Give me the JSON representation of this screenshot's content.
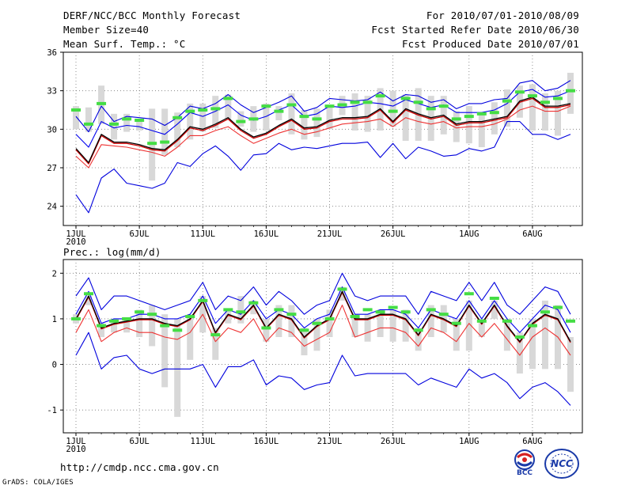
{
  "header": {
    "title": "DERF/NCC/BCC Monthly Forecast",
    "member_size": "Member Size=40",
    "variable": "Mean Surf. Temp.: °C",
    "period": "For 2010/07/01-2010/08/09",
    "started": "Fcst Started Refer Date 2010/06/30",
    "produced": "Fcst Produced Date 2010/07/01"
  },
  "precip_label": "Prec.: log(mm/d)",
  "footer": {
    "url": "http://cmdp.ncc.cma.gov.cn",
    "credit": "GrADS: COLA/IGES",
    "logo_bcc": "BCC",
    "logo_ncc": "NCC"
  },
  "colors": {
    "max_line": "#0000dd",
    "upper_line": "#0000ee",
    "mean_line": "#000000",
    "median_line": "#cc0000",
    "lower_line": "#ee3333",
    "min_line": "#0000dd",
    "range_bar": "#d8d8d8",
    "obs_mark": "#44dd44",
    "grid": "#777777"
  },
  "chart_data": [
    {
      "type": "line",
      "name": "temperature",
      "ylabel": "Mean Surf. Temp.: °C",
      "ylim": [
        22.5,
        36
      ],
      "yticks": [
        24,
        27,
        30,
        33,
        36
      ],
      "xticks": [
        {
          "day": 1,
          "label": "1JUL",
          "sub": "2010"
        },
        {
          "day": 6,
          "label": "6JUL"
        },
        {
          "day": 11,
          "label": "11JUL"
        },
        {
          "day": 16,
          "label": "16JUL"
        },
        {
          "day": 21,
          "label": "21JUL"
        },
        {
          "day": 26,
          "label": "26JUL"
        },
        {
          "day": 32,
          "label": "1AUG"
        },
        {
          "day": 37,
          "label": "6AUG"
        }
      ],
      "x": [
        1,
        2,
        3,
        4,
        5,
        6,
        7,
        8,
        9,
        10,
        11,
        12,
        13,
        14,
        15,
        16,
        17,
        18,
        19,
        20,
        21,
        22,
        23,
        24,
        25,
        26,
        27,
        28,
        29,
        30,
        31,
        32,
        33,
        34,
        35,
        36,
        37,
        38,
        39,
        40
      ],
      "series": [
        {
          "name": "max",
          "values": [
            31.0,
            29.8,
            31.8,
            30.6,
            31.0,
            30.9,
            30.8,
            30.3,
            30.9,
            31.8,
            31.6,
            32.0,
            32.7,
            31.9,
            31.3,
            31.7,
            32.1,
            32.6,
            31.4,
            31.7,
            32.4,
            32.3,
            32.2,
            32.3,
            32.9,
            32.2,
            32.7,
            32.6,
            32.1,
            32.3,
            31.6,
            32.0,
            32.0,
            32.3,
            32.4,
            33.6,
            33.8,
            33.0,
            33.2,
            33.8
          ]
        },
        {
          "name": "upper",
          "values": [
            29.6,
            28.6,
            30.6,
            30.1,
            30.3,
            30.2,
            29.9,
            29.6,
            30.4,
            31.3,
            31.0,
            31.4,
            31.9,
            31.1,
            30.7,
            31.0,
            31.5,
            31.9,
            31.0,
            31.2,
            31.8,
            31.7,
            31.8,
            32.1,
            32.0,
            31.8,
            32.3,
            32.0,
            31.7,
            31.9,
            31.3,
            31.3,
            31.3,
            31.5,
            32.0,
            32.9,
            33.1,
            32.5,
            32.6,
            33.0
          ]
        },
        {
          "name": "mean",
          "values": [
            28.5,
            27.4,
            29.6,
            29.0,
            29.0,
            28.8,
            28.5,
            28.4,
            29.2,
            30.2,
            30.0,
            30.4,
            30.9,
            30.0,
            29.4,
            29.7,
            30.3,
            30.8,
            30.1,
            30.2,
            30.7,
            30.9,
            30.9,
            31.0,
            31.6,
            30.6,
            31.6,
            31.2,
            30.9,
            31.1,
            30.4,
            30.6,
            30.6,
            30.8,
            31.0,
            32.2,
            32.5,
            31.8,
            31.8,
            32.0
          ]
        },
        {
          "name": "median",
          "values": [
            28.4,
            27.3,
            29.5,
            28.9,
            28.9,
            28.7,
            28.4,
            28.3,
            29.1,
            30.1,
            29.9,
            30.3,
            30.8,
            29.9,
            29.3,
            29.6,
            30.2,
            30.7,
            30.0,
            30.1,
            30.6,
            30.8,
            30.8,
            30.9,
            31.5,
            30.5,
            31.5,
            31.1,
            30.8,
            31.0,
            30.3,
            30.5,
            30.5,
            30.7,
            30.9,
            32.1,
            32.4,
            31.7,
            31.7,
            31.9
          ]
        },
        {
          "name": "lower",
          "values": [
            27.9,
            27.0,
            28.8,
            28.7,
            28.6,
            28.4,
            28.2,
            27.9,
            28.6,
            29.5,
            29.5,
            29.9,
            30.2,
            29.5,
            28.9,
            29.3,
            29.7,
            30.0,
            29.6,
            29.8,
            30.1,
            30.4,
            30.5,
            30.6,
            30.8,
            30.2,
            30.9,
            30.6,
            30.4,
            30.6,
            30.1,
            30.2,
            30.2,
            30.4,
            30.8,
            31.5,
            31.8,
            31.4,
            31.4,
            31.8
          ]
        },
        {
          "name": "min",
          "values": [
            24.9,
            23.5,
            26.2,
            26.9,
            25.8,
            25.6,
            25.4,
            25.8,
            27.4,
            27.1,
            28.1,
            28.7,
            27.9,
            26.8,
            28.0,
            28.1,
            28.9,
            28.4,
            28.6,
            28.5,
            28.7,
            28.9,
            28.9,
            29.0,
            27.8,
            28.9,
            27.7,
            28.6,
            28.3,
            27.9,
            28.0,
            28.5,
            28.3,
            28.6,
            30.6,
            30.6,
            29.6,
            29.6,
            29.2,
            29.6
          ]
        },
        {
          "name": "bar_top",
          "values": [
            31.8,
            31.7,
            33.4,
            31.2,
            31.2,
            30.8,
            31.6,
            31.6,
            31.3,
            32.0,
            32.0,
            32.6,
            32.7,
            31.4,
            31.8,
            32.0,
            31.8,
            32.8,
            31.5,
            31.6,
            31.9,
            32.6,
            32.8,
            32.6,
            33.2,
            33.0,
            32.7,
            33.2,
            32.6,
            32.6,
            31.4,
            31.8,
            31.3,
            32.1,
            33.1,
            33.4,
            33.5,
            32.8,
            33.0,
            34.4
          ]
        },
        {
          "name": "bar_bottom",
          "values": [
            30.0,
            29.8,
            30.4,
            29.2,
            29.8,
            29.9,
            26.0,
            28.0,
            28.6,
            29.2,
            29.8,
            30.1,
            30.8,
            30.2,
            29.8,
            29.9,
            30.7,
            29.6,
            29.2,
            29.4,
            30.0,
            31.1,
            29.9,
            29.8,
            29.9,
            30.2,
            29.1,
            29.1,
            29.1,
            29.6,
            29.0,
            28.9,
            28.6,
            29.6,
            30.2,
            30.9,
            29.9,
            29.9,
            29.5,
            31.2
          ]
        },
        {
          "name": "observed",
          "values": [
            31.5,
            30.4,
            32.0,
            30.4,
            30.8,
            30.7,
            28.9,
            29.0,
            30.9,
            31.4,
            31.5,
            31.6,
            32.4,
            30.6,
            30.8,
            31.8,
            31.4,
            31.9,
            31.0,
            30.8,
            31.8,
            31.9,
            32.1,
            32.1,
            32.6,
            31.4,
            32.4,
            32.1,
            31.6,
            31.8,
            30.8,
            31.0,
            31.2,
            31.3,
            32.2,
            32.9,
            32.6,
            32.1,
            32.4,
            33.0
          ]
        }
      ]
    },
    {
      "type": "line",
      "name": "precipitation",
      "ylabel": "Prec.: log(mm/d)",
      "ylim": [
        -1.5,
        2.3
      ],
      "yticks": [
        -1,
        0,
        1,
        2
      ],
      "xticks": [
        {
          "day": 1,
          "label": "1JUL",
          "sub": "2010"
        },
        {
          "day": 6,
          "label": "6JUL"
        },
        {
          "day": 11,
          "label": "11JUL"
        },
        {
          "day": 16,
          "label": "16JUL"
        },
        {
          "day": 21,
          "label": "21JUL"
        },
        {
          "day": 26,
          "label": "26JUL"
        },
        {
          "day": 32,
          "label": "1AUG"
        },
        {
          "day": 37,
          "label": "6AUG"
        }
      ],
      "x": [
        1,
        2,
        3,
        4,
        5,
        6,
        7,
        8,
        9,
        10,
        11,
        12,
        13,
        14,
        15,
        16,
        17,
        18,
        19,
        20,
        21,
        22,
        23,
        24,
        25,
        26,
        27,
        28,
        29,
        30,
        31,
        32,
        33,
        34,
        35,
        36,
        37,
        38,
        39,
        40
      ],
      "series": [
        {
          "name": "max",
          "values": [
            1.5,
            1.9,
            1.2,
            1.5,
            1.5,
            1.4,
            1.3,
            1.2,
            1.3,
            1.4,
            1.8,
            1.2,
            1.5,
            1.4,
            1.7,
            1.3,
            1.6,
            1.4,
            1.1,
            1.3,
            1.4,
            2.0,
            1.5,
            1.4,
            1.5,
            1.5,
            1.5,
            1.1,
            1.6,
            1.5,
            1.4,
            1.8,
            1.4,
            1.8,
            1.3,
            1.1,
            1.4,
            1.7,
            1.6,
            1.1
          ]
        },
        {
          "name": "upper",
          "values": [
            1.1,
            1.6,
            0.9,
            1.0,
            1.0,
            1.1,
            1.1,
            1.0,
            1.0,
            1.1,
            1.5,
            0.9,
            1.2,
            1.1,
            1.4,
            1.0,
            1.2,
            1.1,
            0.8,
            1.0,
            1.1,
            1.7,
            1.1,
            1.1,
            1.2,
            1.2,
            1.1,
            0.8,
            1.2,
            1.1,
            1.0,
            1.4,
            1.0,
            1.4,
            1.0,
            0.7,
            1.0,
            1.3,
            1.2,
            0.7
          ]
        },
        {
          "name": "mean",
          "values": [
            1.0,
            1.5,
            0.8,
            0.9,
            0.95,
            1.0,
            1.0,
            0.9,
            0.85,
            1.0,
            1.4,
            0.7,
            1.1,
            1.0,
            1.3,
            0.8,
            1.1,
            1.0,
            0.6,
            0.85,
            1.0,
            1.6,
            1.0,
            1.0,
            1.1,
            1.1,
            1.0,
            0.65,
            1.1,
            1.0,
            0.85,
            1.3,
            0.9,
            1.3,
            0.85,
            0.5,
            0.9,
            1.1,
            1.0,
            0.5
          ]
        },
        {
          "name": "median",
          "values": [
            0.98,
            1.48,
            0.78,
            0.88,
            0.93,
            0.98,
            0.98,
            0.88,
            0.83,
            0.98,
            1.38,
            0.68,
            1.08,
            0.98,
            1.28,
            0.78,
            1.08,
            0.98,
            0.58,
            0.83,
            0.98,
            1.58,
            0.98,
            0.98,
            1.08,
            1.08,
            0.98,
            0.63,
            1.08,
            0.98,
            0.83,
            1.28,
            0.88,
            1.28,
            0.83,
            0.48,
            0.88,
            1.08,
            0.98,
            0.48
          ]
        },
        {
          "name": "lower",
          "values": [
            0.7,
            1.2,
            0.5,
            0.7,
            0.8,
            0.7,
            0.7,
            0.6,
            0.55,
            0.7,
            1.1,
            0.5,
            0.8,
            0.7,
            1.0,
            0.5,
            0.8,
            0.7,
            0.4,
            0.55,
            0.7,
            1.3,
            0.6,
            0.7,
            0.8,
            0.8,
            0.7,
            0.4,
            0.8,
            0.7,
            0.5,
            0.9,
            0.6,
            0.9,
            0.55,
            0.2,
            0.6,
            0.8,
            0.6,
            0.2
          ]
        },
        {
          "name": "min",
          "values": [
            0.2,
            0.7,
            -0.1,
            0.15,
            0.2,
            -0.1,
            -0.2,
            -0.1,
            -0.1,
            -0.1,
            0.0,
            -0.5,
            -0.05,
            -0.05,
            0.1,
            -0.45,
            -0.25,
            -0.3,
            -0.55,
            -0.45,
            -0.4,
            0.2,
            -0.25,
            -0.2,
            -0.2,
            -0.2,
            -0.2,
            -0.45,
            -0.3,
            -0.4,
            -0.5,
            -0.1,
            -0.3,
            -0.2,
            -0.4,
            -0.75,
            -0.5,
            -0.4,
            -0.6,
            -0.9
          ]
        },
        {
          "name": "bar_top",
          "values": [
            1.1,
            1.5,
            0.9,
            1.0,
            1.0,
            1.2,
            1.3,
            1.1,
            1.0,
            1.1,
            1.5,
            0.8,
            1.2,
            1.5,
            1.4,
            1.0,
            1.3,
            1.3,
            0.8,
            1.0,
            1.2,
            1.7,
            1.1,
            1.1,
            1.2,
            1.2,
            1.2,
            0.8,
            1.3,
            1.3,
            1.0,
            1.4,
            1.0,
            1.4,
            1.0,
            0.7,
            1.0,
            1.4,
            1.3,
            0.6
          ]
        },
        {
          "name": "bar_bottom",
          "values": [
            0.9,
            1.3,
            0.6,
            0.7,
            0.7,
            0.6,
            0.4,
            -0.5,
            -1.15,
            0.1,
            0.7,
            0.1,
            0.9,
            0.9,
            1.1,
            0.5,
            0.6,
            0.6,
            0.2,
            0.3,
            0.6,
            1.4,
            0.6,
            0.5,
            0.6,
            0.5,
            0.5,
            0.3,
            0.6,
            0.7,
            0.3,
            0.3,
            0.6,
            1.0,
            0.3,
            -0.2,
            -0.1,
            -0.1,
            -0.1,
            -0.6
          ]
        },
        {
          "name": "observed",
          "values": [
            1.0,
            1.55,
            0.85,
            0.95,
            1.0,
            1.15,
            1.1,
            0.85,
            0.75,
            1.05,
            1.4,
            0.65,
            1.2,
            1.15,
            1.35,
            0.8,
            1.2,
            1.1,
            0.75,
            0.9,
            1.0,
            1.65,
            1.05,
            1.2,
            1.15,
            1.25,
            1.15,
            0.75,
            1.2,
            1.1,
            0.9,
            1.55,
            0.95,
            1.45,
            0.95,
            0.6,
            0.85,
            1.15,
            1.25,
            0.95
          ]
        }
      ]
    }
  ]
}
